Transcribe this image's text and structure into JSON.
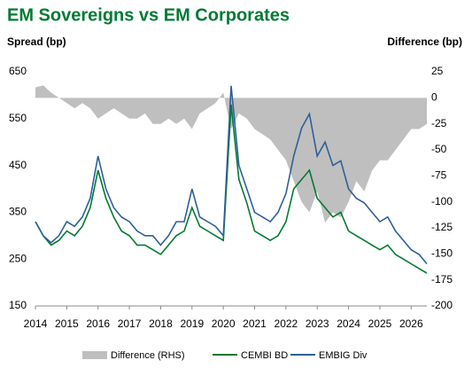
{
  "chart_data": {
    "type": "line",
    "title": "EM Sovereigns vs EM Corporates",
    "y_label": "Spread (bp)",
    "y2_label": "Difference (bp)",
    "x": [
      2014,
      2014.25,
      2014.5,
      2014.75,
      2015,
      2015.25,
      2015.5,
      2015.75,
      2016,
      2016.25,
      2016.5,
      2016.75,
      2017,
      2017.25,
      2017.5,
      2017.75,
      2018,
      2018.25,
      2018.5,
      2018.75,
      2019,
      2019.25,
      2019.5,
      2019.75,
      2020,
      2020.25,
      2020.5,
      2020.75,
      2021,
      2021.25,
      2021.5,
      2021.75,
      2022,
      2022.25,
      2022.5,
      2022.75,
      2023,
      2023.25,
      2023.5,
      2023.75,
      2024,
      2024.25,
      2024.5,
      2024.75,
      2025,
      2025.25,
      2025.5,
      2025.75,
      2026,
      2026.25,
      2026.5
    ],
    "xlim": [
      2014,
      2026.5
    ],
    "xticks": [
      2014,
      2015,
      2016,
      2017,
      2018,
      2019,
      2020,
      2021,
      2022,
      2023,
      2024,
      2025,
      2026
    ],
    "ylim": [
      150,
      650
    ],
    "yticks": [
      150,
      250,
      350,
      450,
      550,
      650
    ],
    "y2lim": [
      -200,
      25
    ],
    "y2ticks": [
      -200,
      -175,
      -150,
      -125,
      -100,
      -75,
      -50,
      -25,
      0,
      25
    ],
    "series": [
      {
        "name": "Difference (RHS)",
        "type": "area",
        "axis": "y2",
        "color": "#bfbfbf",
        "values": [
          10,
          12,
          5,
          0,
          -5,
          -10,
          -5,
          -10,
          -20,
          -15,
          -10,
          -15,
          -20,
          -20,
          -15,
          -25,
          -25,
          -20,
          -25,
          -20,
          -30,
          -15,
          -10,
          -5,
          5,
          -30,
          -15,
          -20,
          -30,
          -35,
          -40,
          -50,
          -60,
          -80,
          -100,
          -110,
          -90,
          -120,
          -110,
          -115,
          -100,
          -80,
          -90,
          -70,
          -60,
          -60,
          -50,
          -40,
          -30,
          -30,
          -25
        ]
      },
      {
        "name": "CEMBI BD",
        "type": "line",
        "color": "#007a33",
        "values": [
          330,
          300,
          280,
          290,
          310,
          300,
          320,
          360,
          440,
          380,
          340,
          310,
          300,
          280,
          280,
          270,
          260,
          280,
          300,
          310,
          360,
          320,
          310,
          300,
          290,
          580,
          420,
          370,
          310,
          300,
          290,
          300,
          330,
          400,
          420,
          440,
          380,
          360,
          340,
          350,
          310,
          300,
          290,
          280,
          270,
          280,
          260,
          250,
          240,
          230,
          220
        ]
      },
      {
        "name": "EMBIG Div",
        "type": "line",
        "color": "#2e5f99",
        "values": [
          330,
          300,
          285,
          300,
          330,
          320,
          340,
          380,
          470,
          400,
          360,
          340,
          330,
          310,
          300,
          300,
          280,
          300,
          330,
          330,
          400,
          340,
          330,
          320,
          300,
          620,
          450,
          400,
          350,
          340,
          330,
          350,
          390,
          470,
          530,
          560,
          470,
          500,
          450,
          460,
          400,
          380,
          370,
          350,
          330,
          340,
          310,
          290,
          270,
          260,
          240
        ]
      }
    ]
  }
}
